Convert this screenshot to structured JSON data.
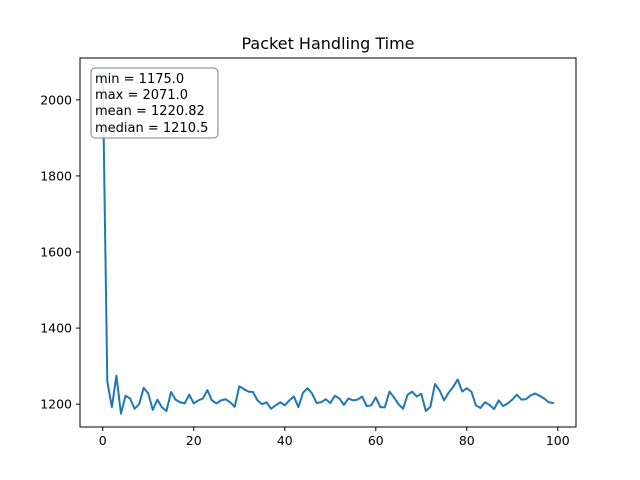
{
  "chart_data": {
    "type": "line",
    "title": "Packet Handling Time",
    "xlabel": "",
    "ylabel": "",
    "xlim": [
      -5,
      104
    ],
    "ylim": [
      1140,
      2110
    ],
    "xticks": [
      0,
      20,
      40,
      60,
      80,
      100
    ],
    "yticks": [
      1200,
      1400,
      1600,
      1800,
      2000
    ],
    "xtick_labels": [
      "0",
      "20",
      "40",
      "60",
      "80",
      "100"
    ],
    "ytick_labels": [
      "1200",
      "1400",
      "1600",
      "1800",
      "2000"
    ],
    "grid": false,
    "line_color": "#1f77b4",
    "stats_box": {
      "min": "min = 1175.0",
      "max": "max = 2071.0",
      "mean": "mean = 1220.82",
      "median": "median = 1210.5"
    },
    "series": [
      {
        "x": [
          0,
          1,
          2,
          3,
          4,
          5,
          6,
          7,
          8,
          9,
          10,
          11,
          12,
          13,
          14,
          15,
          16,
          17,
          18,
          19,
          20,
          21,
          22,
          23,
          24,
          25,
          26,
          27,
          28,
          29,
          30,
          31,
          32,
          33,
          34,
          35,
          36,
          37,
          38,
          39,
          40,
          41,
          42,
          43,
          44,
          45,
          46,
          47,
          48,
          49,
          50,
          51,
          52,
          53,
          54,
          55,
          56,
          57,
          58,
          59,
          60,
          61,
          62,
          63,
          64,
          65,
          66,
          67,
          68,
          69,
          70,
          71,
          72,
          73,
          74,
          75,
          76,
          77,
          78,
          79,
          80,
          81,
          82,
          83,
          84,
          85,
          86,
          87,
          88,
          89,
          90,
          91,
          92,
          93,
          94,
          95,
          96,
          97,
          98,
          99
        ],
        "values": [
          2071,
          1260,
          1192,
          1275,
          1175,
          1222,
          1215,
          1188,
          1200,
          1243,
          1228,
          1185,
          1212,
          1192,
          1182,
          1232,
          1212,
          1205,
          1202,
          1225,
          1202,
          1210,
          1215,
          1237,
          1210,
          1202,
          1210,
          1213,
          1205,
          1193,
          1247,
          1240,
          1233,
          1232,
          1210,
          1200,
          1205,
          1188,
          1197,
          1205,
          1197,
          1210,
          1220,
          1192,
          1230,
          1242,
          1228,
          1203,
          1205,
          1213,
          1203,
          1222,
          1215,
          1198,
          1215,
          1210,
          1212,
          1220,
          1195,
          1197,
          1218,
          1192,
          1192,
          1233,
          1218,
          1200,
          1188,
          1225,
          1233,
          1220,
          1227,
          1182,
          1193,
          1253,
          1237,
          1210,
          1230,
          1245,
          1265,
          1233,
          1242,
          1233,
          1197,
          1190,
          1205,
          1198,
          1187,
          1210,
          1195,
          1202,
          1212,
          1225,
          1212,
          1213,
          1223,
          1228,
          1222,
          1215,
          1205,
          1203
        ]
      }
    ]
  }
}
